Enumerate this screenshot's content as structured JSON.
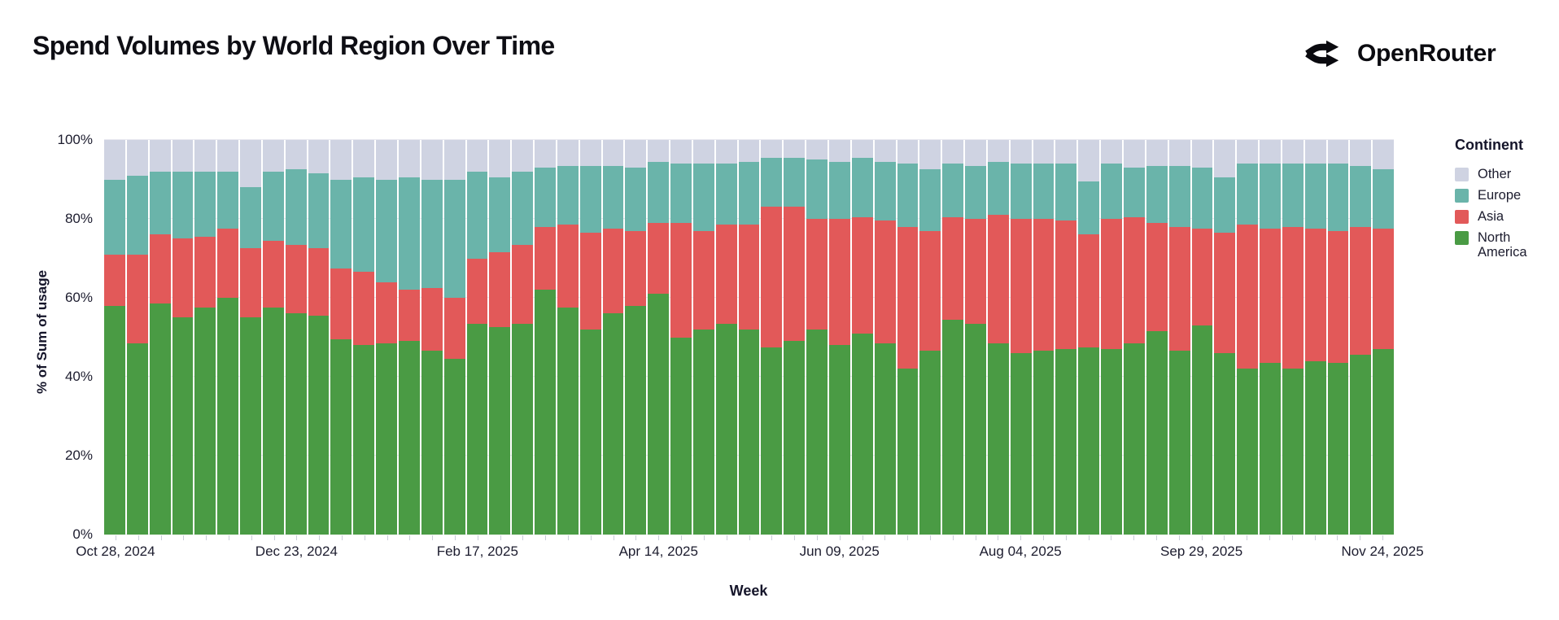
{
  "header": {
    "title": "Spend Volumes by World Region Over Time",
    "brand": {
      "name": "OpenRouter",
      "icon": "openrouter-route-split-icon"
    }
  },
  "chart_data": {
    "type": "bar",
    "stacked": true,
    "normalized": "percent",
    "title": "Spend Volumes by World Region Over Time",
    "xlabel": "Week",
    "ylabel": "% of Sum of usage",
    "ylim": [
      0,
      100
    ],
    "grid": true,
    "legend_title": "Continent",
    "legend_position": "right",
    "legend_order": [
      "Other",
      "Europe",
      "Asia",
      "North America"
    ],
    "yticks": [
      "0%",
      "20%",
      "40%",
      "60%",
      "80%",
      "100%"
    ],
    "xtick_every": 8,
    "xtick_labels": [
      "Oct 28, 2024",
      "Dec 23, 2024",
      "Feb 17, 2025",
      "Apr 14, 2025",
      "Jun 09, 2025",
      "Aug 04, 2025",
      "Sep 29, 2025",
      "Nov 24, 2025"
    ],
    "x": [
      "Oct 28, 2024",
      "Nov 04, 2024",
      "Nov 11, 2024",
      "Nov 18, 2024",
      "Nov 25, 2024",
      "Dec 02, 2024",
      "Dec 09, 2024",
      "Dec 16, 2024",
      "Dec 23, 2024",
      "Dec 30, 2024",
      "Jan 06, 2025",
      "Jan 13, 2025",
      "Jan 20, 2025",
      "Jan 27, 2025",
      "Feb 03, 2025",
      "Feb 10, 2025",
      "Feb 17, 2025",
      "Feb 24, 2025",
      "Mar 03, 2025",
      "Mar 10, 2025",
      "Mar 17, 2025",
      "Mar 24, 2025",
      "Mar 31, 2025",
      "Apr 07, 2025",
      "Apr 14, 2025",
      "Apr 21, 2025",
      "Apr 28, 2025",
      "May 05, 2025",
      "May 12, 2025",
      "May 19, 2025",
      "May 26, 2025",
      "Jun 02, 2025",
      "Jun 09, 2025",
      "Jun 16, 2025",
      "Jun 23, 2025",
      "Jun 30, 2025",
      "Jul 07, 2025",
      "Jul 14, 2025",
      "Jul 21, 2025",
      "Jul 28, 2025",
      "Aug 04, 2025",
      "Aug 11, 2025",
      "Aug 18, 2025",
      "Aug 25, 2025",
      "Sep 01, 2025",
      "Sep 08, 2025",
      "Sep 15, 2025",
      "Sep 22, 2025",
      "Sep 29, 2025",
      "Oct 06, 2025",
      "Oct 13, 2025",
      "Oct 20, 2025",
      "Oct 27, 2025",
      "Nov 03, 2025",
      "Nov 10, 2025",
      "Nov 17, 2025",
      "Nov 24, 2025"
    ],
    "series": [
      {
        "name": "North America",
        "color": "#4a9b44",
        "values": [
          58,
          48.5,
          58.5,
          55,
          57.5,
          60,
          55,
          57.5,
          56,
          55.5,
          49.5,
          48,
          48.5,
          49,
          46.5,
          44.5,
          53.5,
          52.5,
          53.5,
          62,
          57.5,
          52,
          56,
          58,
          61,
          50,
          52,
          53.5,
          52,
          47.5,
          49,
          52,
          48,
          51,
          48.5,
          42,
          46.5,
          54.5,
          53.5,
          48.5,
          46,
          46.5,
          47,
          47.5,
          47,
          48.5,
          51.5,
          46.5,
          53,
          46,
          42,
          43.5,
          42,
          44,
          43.5,
          45.5,
          47
        ]
      },
      {
        "name": "Asia",
        "color": "#e25959",
        "values": [
          13,
          22.5,
          17.5,
          20,
          18,
          17.5,
          17.5,
          17,
          17.5,
          17,
          18,
          18.5,
          15.5,
          13,
          16,
          15.5,
          16.5,
          19,
          20,
          16,
          21,
          24.5,
          21.5,
          19,
          18,
          29,
          25,
          25,
          26.5,
          35.5,
          34,
          28,
          32,
          29.5,
          31,
          36,
          30.5,
          26,
          26.5,
          32.5,
          34,
          33.5,
          32.5,
          28.5,
          33,
          32,
          27.5,
          31.5,
          24.5,
          30.5,
          36.5,
          34,
          36,
          33.5,
          33.5,
          32.5,
          30.5
        ]
      },
      {
        "name": "Europe",
        "color": "#6ab4aa",
        "values": [
          19,
          20,
          16,
          17,
          16.5,
          14.5,
          15.5,
          17.5,
          19,
          19,
          22.5,
          24,
          26,
          28.5,
          27.5,
          30,
          22,
          19,
          18.5,
          15,
          15,
          17,
          16,
          16,
          15.5,
          15,
          17,
          15.5,
          16,
          12.5,
          12.5,
          15,
          14.5,
          15,
          15,
          16,
          15.5,
          13.5,
          13.5,
          13.5,
          14,
          14,
          14.5,
          13.5,
          14,
          12.5,
          14.5,
          15.5,
          15.5,
          14,
          15.5,
          16.5,
          16,
          16.5,
          17,
          15.5,
          15
        ]
      },
      {
        "name": "Other",
        "color": "#cfd3e2",
        "values": [
          10,
          9,
          8,
          8,
          8,
          8,
          12,
          8,
          7.5,
          8.5,
          10,
          9.5,
          10,
          9.5,
          10,
          10,
          8,
          9.5,
          8,
          7,
          6.5,
          6.5,
          6.5,
          7,
          5.5,
          6,
          6,
          6,
          5.5,
          4.5,
          4.5,
          5,
          5.5,
          4.5,
          5.5,
          6,
          7.5,
          6,
          6.5,
          5.5,
          6,
          6,
          6,
          10.5,
          6,
          7,
          6.5,
          6.5,
          7,
          9.5,
          6,
          6,
          6,
          6,
          6,
          6.5,
          7.5
        ]
      }
    ]
  }
}
